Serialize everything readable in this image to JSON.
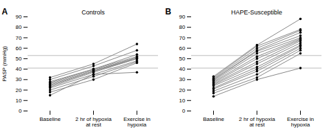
{
  "chart_data": [
    {
      "type": "line",
      "title": "Controls",
      "annotations": [
        "A"
      ],
      "ylabel": "PASP (mmHg)",
      "categories": [
        "Baseline",
        "2 hr of hypoxia\nat rest",
        "Exercise in\nhypoxia"
      ],
      "color": "#888888",
      "marker": "circle",
      "reference_lines": {
        "values": [
          41,
          53
        ],
        "color": "#bbbbbb"
      },
      "series": [
        {
          "values": [
            15,
            35,
            37
          ]
        },
        {
          "values": [
            18,
            30,
            46
          ]
        },
        {
          "values": [
            20,
            33,
            47
          ]
        },
        {
          "values": [
            22,
            35,
            48
          ]
        },
        {
          "values": [
            23,
            37,
            50
          ]
        },
        {
          "values": [
            24,
            38,
            50
          ]
        },
        {
          "values": [
            25,
            38,
            51
          ]
        },
        {
          "values": [
            26,
            39,
            51
          ]
        },
        {
          "values": [
            27,
            40,
            52
          ]
        },
        {
          "values": [
            28,
            40,
            54
          ]
        },
        {
          "values": [
            30,
            43,
            58
          ]
        },
        {
          "values": [
            32,
            45,
            64
          ]
        }
      ],
      "ylim": [
        0,
        90
      ],
      "yticks": [
        0,
        10,
        20,
        30,
        40,
        50,
        60,
        70,
        80,
        90
      ],
      "grid": false
    },
    {
      "type": "line",
      "title": "HAPE-Susceptible",
      "annotations": [
        "B"
      ],
      "categories": [
        "Baseline",
        "2 hr of hypoxia\nat rest",
        "Exercise in\nhypoxia"
      ],
      "color": "#888888",
      "marker": "circle",
      "reference_lines": {
        "values": [
          41,
          53
        ],
        "color": "#bbbbbb"
      },
      "series": [
        {
          "values": [
            14,
            30,
            41
          ]
        },
        {
          "values": [
            17,
            32,
            55
          ]
        },
        {
          "values": [
            19,
            35,
            58
          ]
        },
        {
          "values": [
            21,
            38,
            60
          ]
        },
        {
          "values": [
            22,
            40,
            62
          ]
        },
        {
          "values": [
            24,
            42,
            63
          ]
        },
        {
          "values": [
            25,
            45,
            65
          ]
        },
        {
          "values": [
            26,
            47,
            67
          ]
        },
        {
          "values": [
            27,
            50,
            68
          ]
        },
        {
          "values": [
            28,
            52,
            69
          ]
        },
        {
          "values": [
            29,
            55,
            70
          ]
        },
        {
          "values": [
            30,
            57,
            72
          ]
        },
        {
          "values": [
            30,
            58,
            75
          ]
        },
        {
          "values": [
            31,
            60,
            77
          ]
        },
        {
          "values": [
            32,
            62,
            78
          ]
        },
        {
          "values": [
            33,
            63,
            88
          ]
        }
      ],
      "ylim": [
        0,
        90
      ],
      "yticks": [
        0,
        10,
        20,
        30,
        40,
        50,
        60,
        70,
        80,
        90
      ],
      "grid": false
    }
  ]
}
